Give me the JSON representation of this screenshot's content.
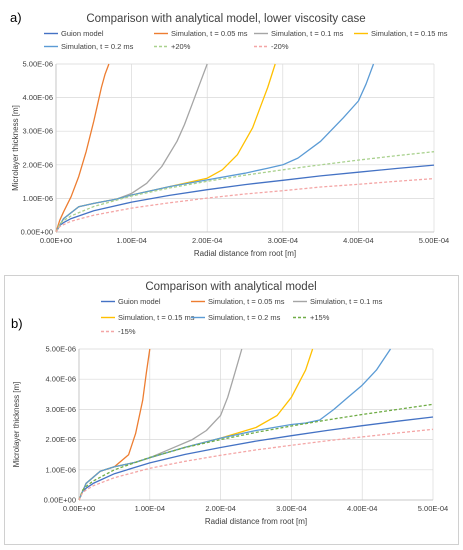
{
  "chart_data": [
    {
      "type": "line",
      "panel_label": "a)",
      "title": "Comparison with analytical model, lower viscosity case",
      "xlabel": "Radial distance from root [m]",
      "ylabel": "Microlayer thickness [m]",
      "xlim": [
        0,
        0.0005
      ],
      "ylim": [
        0,
        5e-06
      ],
      "x_ticks": [
        "0.00E+00",
        "1.00E-04",
        "2.00E-04",
        "3.00E-04",
        "4.00E-04",
        "5.00E-04"
      ],
      "y_ticks": [
        "0.00E+00",
        "1.00E-06",
        "2.00E-06",
        "3.00E-06",
        "4.00E-06",
        "5.00E-06"
      ],
      "grid": true,
      "legend_position": "top",
      "series": [
        {
          "name": "Guion model",
          "color": "#4472c4",
          "dash": "none",
          "x": [
            0,
            5e-06,
            1e-05,
            2e-05,
            5e-05,
            0.0001,
            0.00015,
            0.0002,
            0.00025,
            0.0003,
            0.00035,
            0.0004,
            0.00045,
            0.0005
          ],
          "y": [
            0,
            2e-07,
            2.8e-07,
            4e-07,
            6.3e-07,
            8.9e-07,
            1.09e-06,
            1.26e-06,
            1.41e-06,
            1.54e-06,
            1.67e-06,
            1.78e-06,
            1.89e-06,
            1.99e-06
          ]
        },
        {
          "name": "Simulation, t = 0.05 ms",
          "color": "#ed7d31",
          "dash": "none",
          "x": [
            0,
            5e-06,
            1e-05,
            2e-05,
            3e-05,
            4e-05,
            5e-05,
            5.5e-05,
            6e-05,
            6.5e-05,
            7e-05
          ],
          "y": [
            0,
            3.5e-07,
            6e-07,
            1.05e-06,
            1.65e-06,
            2.4e-06,
            3.3e-06,
            3.8e-06,
            4.3e-06,
            4.7e-06,
            5e-06
          ]
        },
        {
          "name": "Simulation, t = 0.1 ms",
          "color": "#a5a5a5",
          "dash": "none",
          "x": [
            0,
            1e-05,
            3e-05,
            5e-05,
            8e-05,
            0.0001,
            0.00012,
            0.00014,
            0.00016,
            0.00017,
            0.00018,
            0.00019,
            0.0002
          ],
          "y": [
            0,
            4e-07,
            7.5e-07,
            8.5e-07,
            9.8e-07,
            1.15e-06,
            1.45e-06,
            1.95e-06,
            2.7e-06,
            3.2e-06,
            3.8e-06,
            4.4e-06,
            5e-06
          ]
        },
        {
          "name": "Simulation, t = 0.15 ms",
          "color": "#ffc000",
          "dash": "none",
          "x": [
            0,
            1e-05,
            3e-05,
            5e-05,
            8e-05,
            0.0001,
            0.00015,
            0.0002,
            0.00022,
            0.00024,
            0.00026,
            0.00027,
            0.00028,
            0.00029
          ],
          "y": [
            0,
            4e-07,
            7.5e-07,
            8.5e-07,
            9.8e-07,
            1.1e-06,
            1.35e-06,
            1.6e-06,
            1.85e-06,
            2.3e-06,
            3.1e-06,
            3.7e-06,
            4.3e-06,
            5e-06
          ]
        },
        {
          "name": "Simulation, t = 0.2 ms",
          "color": "#5b9bd5",
          "dash": "none",
          "x": [
            0,
            1e-05,
            3e-05,
            5e-05,
            8e-05,
            0.0001,
            0.00015,
            0.0002,
            0.00025,
            0.00028,
            0.0003,
            0.00032,
            0.00035,
            0.00038,
            0.0004,
            0.00041,
            0.00042
          ],
          "y": [
            0,
            4e-07,
            7.5e-07,
            8.5e-07,
            9.8e-07,
            1.1e-06,
            1.35e-06,
            1.55e-06,
            1.75e-06,
            1.9e-06,
            2e-06,
            2.2e-06,
            2.7e-06,
            3.4e-06,
            3.9e-06,
            4.4e-06,
            5e-06
          ]
        },
        {
          "name": "+20%",
          "color": "#a9d18e",
          "dash": "3,2",
          "x": [
            0,
            5e-06,
            1e-05,
            2e-05,
            5e-05,
            0.0001,
            0.00015,
            0.0002,
            0.00025,
            0.0003,
            0.00035,
            0.0004,
            0.00045,
            0.0005
          ],
          "y": [
            0,
            2.4e-07,
            3.4e-07,
            4.8e-07,
            7.6e-07,
            1.07e-06,
            1.31e-06,
            1.51e-06,
            1.69e-06,
            1.85e-06,
            2e-06,
            2.14e-06,
            2.27e-06,
            2.39e-06
          ]
        },
        {
          "name": "-20%",
          "color": "#f4a6a6",
          "dash": "3,2",
          "x": [
            0,
            5e-06,
            1e-05,
            2e-05,
            5e-05,
            0.0001,
            0.00015,
            0.0002,
            0.00025,
            0.0003,
            0.00035,
            0.0004,
            0.00045,
            0.0005
          ],
          "y": [
            0,
            1.6e-07,
            2.2e-07,
            3.2e-07,
            5e-07,
            7.1e-07,
            8.7e-07,
            1.01e-06,
            1.13e-06,
            1.23e-06,
            1.34e-06,
            1.42e-06,
            1.51e-06,
            1.59e-06
          ]
        }
      ]
    },
    {
      "type": "line",
      "panel_label": "b)",
      "title": "Comparison with analytical model",
      "xlabel": "Radial distance from root [m]",
      "ylabel": "Microlayer thickness [m]",
      "xlim": [
        0,
        0.0005
      ],
      "ylim": [
        0,
        5e-06
      ],
      "x_ticks": [
        "0.00E+00",
        "1.00E-04",
        "2.00E-04",
        "3.00E-04",
        "4.00E-04",
        "5.00E-04"
      ],
      "y_ticks": [
        "0.00E+00",
        "1.00E-06",
        "2.00E-06",
        "3.00E-06",
        "4.00E-06",
        "5.00E-06"
      ],
      "grid": true,
      "legend_position": "top",
      "series": [
        {
          "name": "Guion model",
          "color": "#4472c4",
          "dash": "none",
          "x": [
            0,
            5e-06,
            1e-05,
            2e-05,
            5e-05,
            0.0001,
            0.00015,
            0.0002,
            0.00025,
            0.0003,
            0.00035,
            0.0004,
            0.00045,
            0.0005
          ],
          "y": [
            0,
            2.8e-07,
            3.9e-07,
            5.5e-07,
            8.7e-07,
            1.23e-06,
            1.51e-06,
            1.74e-06,
            1.95e-06,
            2.13e-06,
            2.3e-06,
            2.46e-06,
            2.61e-06,
            2.75e-06
          ]
        },
        {
          "name": "Simulation, t = 0.05 ms",
          "color": "#ed7d31",
          "dash": "none",
          "x": [
            0,
            1e-05,
            3e-05,
            5e-05,
            7e-05,
            8e-05,
            9e-05,
            9.5e-05,
            0.0001
          ],
          "y": [
            0,
            5.5e-07,
            9.5e-07,
            1.1e-06,
            1.5e-06,
            2.2e-06,
            3.3e-06,
            4.2e-06,
            5e-06
          ]
        },
        {
          "name": "Simulation, t = 0.1 ms",
          "color": "#a5a5a5",
          "dash": "none",
          "x": [
            0,
            1e-05,
            3e-05,
            5e-05,
            8e-05,
            0.0001,
            0.00013,
            0.00016,
            0.00018,
            0.0002,
            0.00021,
            0.00022,
            0.00023
          ],
          "y": [
            0,
            5.5e-07,
            9.5e-07,
            1.1e-06,
            1.25e-06,
            1.4e-06,
            1.7e-06,
            2e-06,
            2.3e-06,
            2.8e-06,
            3.4e-06,
            4.2e-06,
            5e-06
          ]
        },
        {
          "name": "Simulation, t = 0.15 ms",
          "color": "#ffc000",
          "dash": "none",
          "x": [
            0,
            1e-05,
            3e-05,
            5e-05,
            8e-05,
            0.0001,
            0.00015,
            0.0002,
            0.00025,
            0.00028,
            0.0003,
            0.00032,
            0.00033
          ],
          "y": [
            0,
            5.5e-07,
            9.5e-07,
            1.1e-06,
            1.25e-06,
            1.4e-06,
            1.75e-06,
            2.05e-06,
            2.4e-06,
            2.8e-06,
            3.4e-06,
            4.3e-06,
            5e-06
          ]
        },
        {
          "name": "Simulation, t = 0.2 ms",
          "color": "#5b9bd5",
          "dash": "none",
          "x": [
            0,
            1e-05,
            3e-05,
            5e-05,
            8e-05,
            0.0001,
            0.00015,
            0.0002,
            0.00025,
            0.0003,
            0.00032,
            0.00034,
            0.00036,
            0.00038,
            0.0004,
            0.00042,
            0.00044
          ],
          "y": [
            0,
            5.5e-07,
            9.5e-07,
            1.1e-06,
            1.25e-06,
            1.4e-06,
            1.75e-06,
            2.05e-06,
            2.3e-06,
            2.5e-06,
            2.55e-06,
            2.65e-06,
            3e-06,
            3.4e-06,
            3.8e-06,
            4.3e-06,
            5e-06
          ]
        },
        {
          "name": "+15%",
          "color": "#70ad47",
          "dash": "3,2",
          "x": [
            0,
            5e-06,
            1e-05,
            2e-05,
            5e-05,
            0.0001,
            0.00015,
            0.0002,
            0.00025,
            0.0003,
            0.00035,
            0.0004,
            0.00045,
            0.0005
          ],
          "y": [
            0,
            3.2e-07,
            4.5e-07,
            6.3e-07,
            1e-06,
            1.41e-06,
            1.74e-06,
            2e-06,
            2.24e-06,
            2.45e-06,
            2.65e-06,
            2.83e-06,
            3e-06,
            3.17e-06
          ]
        },
        {
          "name": "-15%",
          "color": "#f4a6a6",
          "dash": "3,2",
          "x": [
            0,
            5e-06,
            1e-05,
            2e-05,
            5e-05,
            0.0001,
            0.00015,
            0.0002,
            0.00025,
            0.0003,
            0.00035,
            0.0004,
            0.00045,
            0.0005
          ],
          "y": [
            0,
            2.4e-07,
            3.3e-07,
            4.7e-07,
            7.4e-07,
            1.05e-06,
            1.28e-06,
            1.48e-06,
            1.66e-06,
            1.81e-06,
            1.96e-06,
            2.09e-06,
            2.22e-06,
            2.34e-06
          ]
        }
      ]
    }
  ]
}
